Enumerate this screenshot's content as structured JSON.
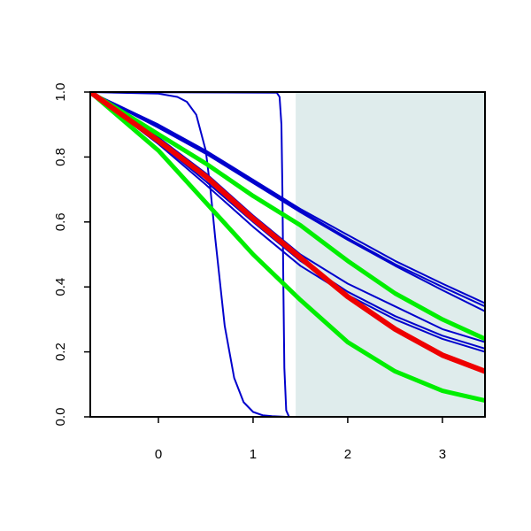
{
  "chart_data": {
    "type": "line",
    "title": "",
    "xlabel": "",
    "ylabel": "",
    "xlim": [
      -0.72,
      3.45
    ],
    "ylim": [
      0,
      1
    ],
    "x_ticks": [
      0,
      1,
      2,
      3
    ],
    "x_tick_labels": [
      "0",
      "1",
      "2",
      "3"
    ],
    "y_ticks": [
      0,
      0.2,
      0.4,
      0.6,
      0.8,
      1
    ],
    "y_tick_labels": [
      "0.0",
      "0.2",
      "0.4",
      "0.6",
      "0.8",
      "1.0"
    ],
    "shaded_region": {
      "x_from": 1.45,
      "x_to": 3.45,
      "color": "#dfecec"
    },
    "series": [
      {
        "color": "#0000cc",
        "width": 2,
        "x": [
          -0.72,
          0,
          0.5,
          1,
          1.5,
          2,
          2.5,
          3,
          3.45
        ],
        "values": [
          1,
          0.9,
          0.82,
          0.73,
          0.64,
          0.56,
          0.48,
          0.41,
          0.35
        ]
      },
      {
        "color": "#0000cc",
        "width": 2,
        "x": [
          -0.72,
          0,
          0.5,
          1,
          1.5,
          2,
          2.5,
          3,
          3.45
        ],
        "values": [
          1,
          0.895,
          0.815,
          0.725,
          0.635,
          0.55,
          0.47,
          0.4,
          0.34
        ]
      },
      {
        "color": "#0000cc",
        "width": 2,
        "x": [
          -0.72,
          0,
          0.5,
          1,
          1.5,
          2,
          2.5,
          3,
          3.45
        ],
        "values": [
          1,
          0.89,
          0.81,
          0.72,
          0.63,
          0.545,
          0.465,
          0.39,
          0.325
        ]
      },
      {
        "color": "#0000cc",
        "width": 2,
        "x": [
          -0.72,
          0,
          0.5,
          1,
          1.5,
          2,
          2.5,
          3,
          3.45
        ],
        "values": [
          1,
          0.86,
          0.75,
          0.62,
          0.5,
          0.41,
          0.34,
          0.27,
          0.23
        ]
      },
      {
        "color": "#0000cc",
        "width": 2,
        "x": [
          -0.72,
          0,
          0.5,
          1,
          1.5,
          2,
          2.5,
          3,
          3.45
        ],
        "values": [
          1,
          0.845,
          0.725,
          0.6,
          0.48,
          0.385,
          0.31,
          0.25,
          0.21
        ]
      },
      {
        "color": "#0000cc",
        "width": 2,
        "x": [
          -0.72,
          0,
          0.5,
          1,
          1.5,
          2,
          2.5,
          3,
          3.45
        ],
        "values": [
          1,
          0.84,
          0.715,
          0.585,
          0.465,
          0.375,
          0.3,
          0.24,
          0.2
        ]
      },
      {
        "color": "#0000cc",
        "width": 2,
        "x": [
          -0.72,
          0,
          0.2,
          0.3,
          0.4,
          0.5,
          0.55,
          0.6,
          0.7,
          0.8,
          0.9,
          1.0,
          1.1,
          1.2,
          1.35,
          3.45
        ],
        "values": [
          1,
          0.995,
          0.985,
          0.97,
          0.93,
          0.82,
          0.7,
          0.55,
          0.28,
          0.12,
          0.045,
          0.015,
          0.005,
          0.002,
          0,
          0
        ]
      },
      {
        "color": "#0000cc",
        "width": 2,
        "x": [
          -0.72,
          1.25,
          1.28,
          1.3,
          1.31,
          1.32,
          1.33,
          1.35,
          1.38,
          3.45
        ],
        "values": [
          1,
          0.998,
          0.985,
          0.9,
          0.7,
          0.4,
          0.15,
          0.02,
          0,
          0
        ]
      },
      {
        "color": "#00ee00",
        "width": 5,
        "x": [
          -0.72,
          0,
          0.5,
          1,
          1.5,
          2,
          2.5,
          3,
          3.45
        ],
        "values": [
          1,
          0.87,
          0.78,
          0.68,
          0.59,
          0.48,
          0.38,
          0.3,
          0.24
        ]
      },
      {
        "color": "#00ee00",
        "width": 5,
        "x": [
          -0.72,
          0,
          0.5,
          1,
          1.5,
          2,
          2.5,
          3,
          3.45
        ],
        "values": [
          1,
          0.82,
          0.66,
          0.5,
          0.36,
          0.23,
          0.14,
          0.08,
          0.05
        ]
      },
      {
        "color": "#ee0000",
        "width": 6,
        "x": [
          -0.72,
          0,
          0.5,
          1,
          1.5,
          2,
          2.5,
          3,
          3.45
        ],
        "values": [
          1,
          0.85,
          0.74,
          0.61,
          0.49,
          0.37,
          0.27,
          0.19,
          0.14
        ]
      }
    ]
  }
}
